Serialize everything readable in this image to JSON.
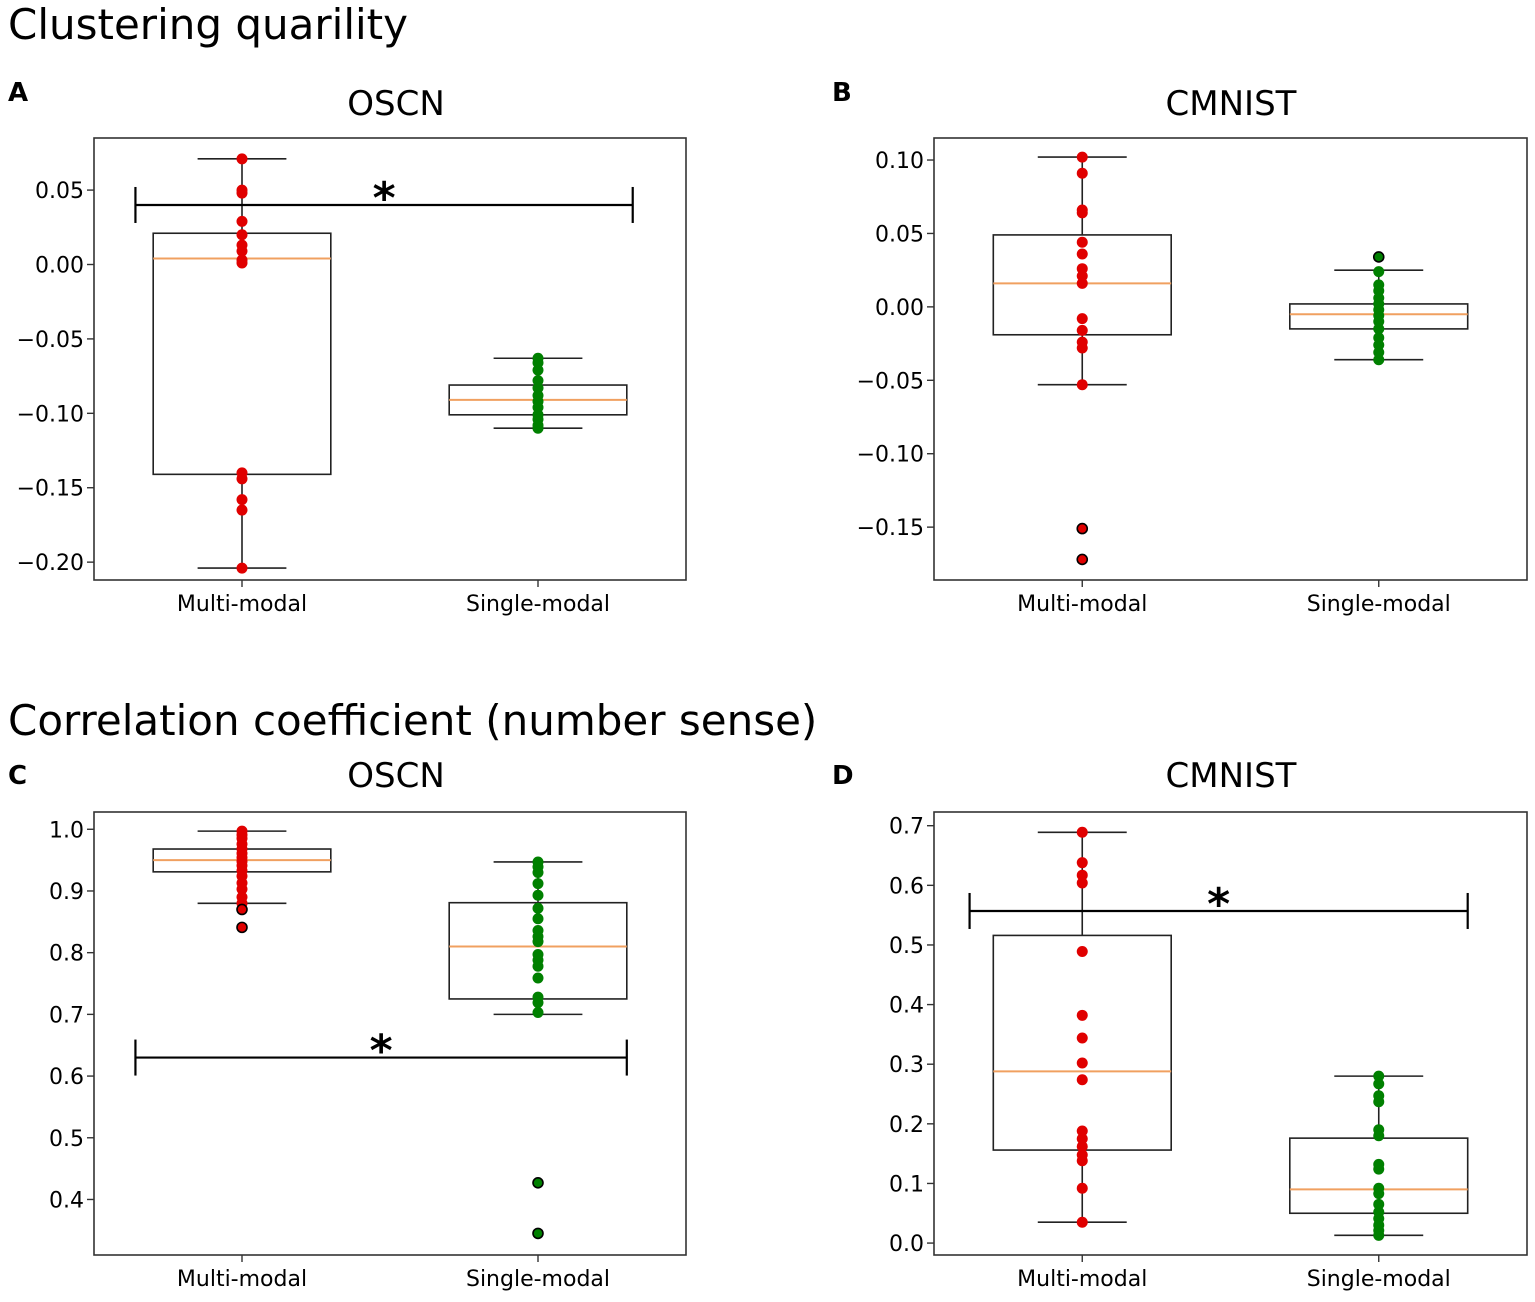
{
  "section_titles": [
    "Clustering quarility",
    "Correlation coefficient  (number sense)"
  ],
  "chart_data": [
    {
      "type": "box",
      "panel": "A",
      "title": "OSCN",
      "section": "Clustering quarility",
      "categories": [
        "Multi-modal",
        "Single-modal"
      ],
      "yticks": [
        0.05,
        0.0,
        -0.05,
        -0.1,
        -0.15,
        -0.2
      ],
      "ytick_labels": [
        "0.05",
        "0.00",
        "−0.05",
        "−0.10",
        "−0.15",
        "−0.20"
      ],
      "ylim": [
        -0.212,
        0.085
      ],
      "boxes": [
        {
          "name": "Multi-modal",
          "color": "#e00000",
          "q1": -0.141,
          "median": 0.004,
          "q3": 0.021,
          "whisker_low": -0.204,
          "whisker_high": 0.071,
          "fliers": [],
          "points": [
            0.071,
            0.05,
            0.048,
            0.029,
            0.02,
            0.013,
            0.009,
            0.003,
            0.001,
            -0.14,
            -0.144,
            -0.158,
            -0.165,
            -0.204
          ]
        },
        {
          "name": "Single-modal",
          "color": "#008000",
          "q1": -0.101,
          "median": -0.091,
          "q3": -0.081,
          "whisker_low": -0.11,
          "whisker_high": -0.063,
          "fliers": [],
          "points": [
            -0.063,
            -0.066,
            -0.071,
            -0.078,
            -0.083,
            -0.088,
            -0.092,
            -0.096,
            -0.101,
            -0.104,
            -0.108,
            -0.11
          ]
        }
      ],
      "significance": {
        "label": "*",
        "y": 0.04,
        "from_x": 0.07,
        "to_x": 0.91
      }
    },
    {
      "type": "box",
      "panel": "B",
      "title": "CMNIST",
      "section": "Clustering quarility",
      "categories": [
        "Multi-modal",
        "Single-modal"
      ],
      "yticks": [
        0.1,
        0.05,
        0.0,
        -0.05,
        -0.1,
        -0.15
      ],
      "ytick_labels": [
        "0.10",
        "0.05",
        "0.00",
        "−0.05",
        "−0.10",
        "−0.15"
      ],
      "ylim": [
        -0.186,
        0.115
      ],
      "boxes": [
        {
          "name": "Multi-modal",
          "color": "#e00000",
          "q1": -0.019,
          "median": 0.016,
          "q3": 0.049,
          "whisker_low": -0.053,
          "whisker_high": 0.102,
          "fliers": [
            -0.151,
            -0.172
          ],
          "points": [
            0.102,
            0.091,
            0.066,
            0.064,
            0.044,
            0.036,
            0.026,
            0.021,
            0.016,
            -0.008,
            -0.016,
            -0.024,
            -0.028,
            -0.053
          ]
        },
        {
          "name": "Single-modal",
          "color": "#008000",
          "q1": -0.015,
          "median": -0.005,
          "q3": 0.002,
          "whisker_low": -0.036,
          "whisker_high": 0.025,
          "fliers": [
            0.034
          ],
          "points": [
            0.024,
            0.015,
            0.011,
            0.006,
            0.002,
            -0.002,
            -0.006,
            -0.01,
            -0.015,
            -0.021,
            -0.026,
            -0.031,
            -0.036
          ]
        }
      ]
    },
    {
      "type": "box",
      "panel": "C",
      "title": "OSCN",
      "section": "Correlation coefficient  (number sense)",
      "categories": [
        "Multi-modal",
        "Single-modal"
      ],
      "yticks": [
        1.0,
        0.9,
        0.8,
        0.7,
        0.6,
        0.5,
        0.4
      ],
      "ytick_labels": [
        "1.0",
        "0.9",
        "0.8",
        "0.7",
        "0.6",
        "0.5",
        "0.4"
      ],
      "ylim": [
        0.31,
        1.028
      ],
      "boxes": [
        {
          "name": "Multi-modal",
          "color": "#e00000",
          "q1": 0.931,
          "median": 0.95,
          "q3": 0.968,
          "whisker_low": 0.88,
          "whisker_high": 0.997,
          "fliers": [
            0.87,
            0.841
          ],
          "points": [
            0.997,
            0.991,
            0.985,
            0.976,
            0.968,
            0.961,
            0.954,
            0.948,
            0.941,
            0.933,
            0.924,
            0.913,
            0.903,
            0.89,
            0.88
          ]
        },
        {
          "name": "Single-modal",
          "color": "#008000",
          "q1": 0.725,
          "median": 0.81,
          "q3": 0.881,
          "whisker_low": 0.7,
          "whisker_high": 0.947,
          "fliers": [
            0.427,
            0.345
          ],
          "points": [
            0.947,
            0.939,
            0.93,
            0.912,
            0.893,
            0.872,
            0.855,
            0.836,
            0.826,
            0.818,
            0.797,
            0.788,
            0.778,
            0.759,
            0.728,
            0.719,
            0.703
          ]
        }
      ],
      "significance": {
        "label": "*",
        "y": 0.63,
        "from_x": 0.07,
        "to_x": 0.9
      }
    },
    {
      "type": "box",
      "panel": "D",
      "title": "CMNIST",
      "section": "Correlation coefficient  (number sense)",
      "categories": [
        "Multi-modal",
        "Single-modal"
      ],
      "yticks": [
        0.7,
        0.6,
        0.5,
        0.4,
        0.3,
        0.2,
        0.1,
        0.0
      ],
      "ytick_labels": [
        "0.7",
        "0.6",
        "0.5",
        "0.4",
        "0.3",
        "0.2",
        "0.1",
        "0.0"
      ],
      "ylim": [
        -0.02,
        0.723
      ],
      "boxes": [
        {
          "name": "Multi-modal",
          "color": "#e00000",
          "q1": 0.156,
          "median": 0.288,
          "q3": 0.516,
          "whisker_low": 0.035,
          "whisker_high": 0.689,
          "fliers": [],
          "points": [
            0.689,
            0.638,
            0.617,
            0.604,
            0.489,
            0.382,
            0.344,
            0.302,
            0.274,
            0.188,
            0.175,
            0.162,
            0.148,
            0.138,
            0.092,
            0.035
          ]
        },
        {
          "name": "Single-modal",
          "color": "#008000",
          "q1": 0.05,
          "median": 0.09,
          "q3": 0.176,
          "whisker_low": 0.013,
          "whisker_high": 0.28,
          "fliers": [],
          "points": [
            0.28,
            0.267,
            0.247,
            0.237,
            0.19,
            0.18,
            0.132,
            0.124,
            0.092,
            0.083,
            0.065,
            0.052,
            0.041,
            0.03,
            0.021,
            0.013
          ]
        }
      ],
      "significance": {
        "label": "*",
        "y": 0.557,
        "from_x": 0.06,
        "to_x": 0.9
      }
    }
  ]
}
